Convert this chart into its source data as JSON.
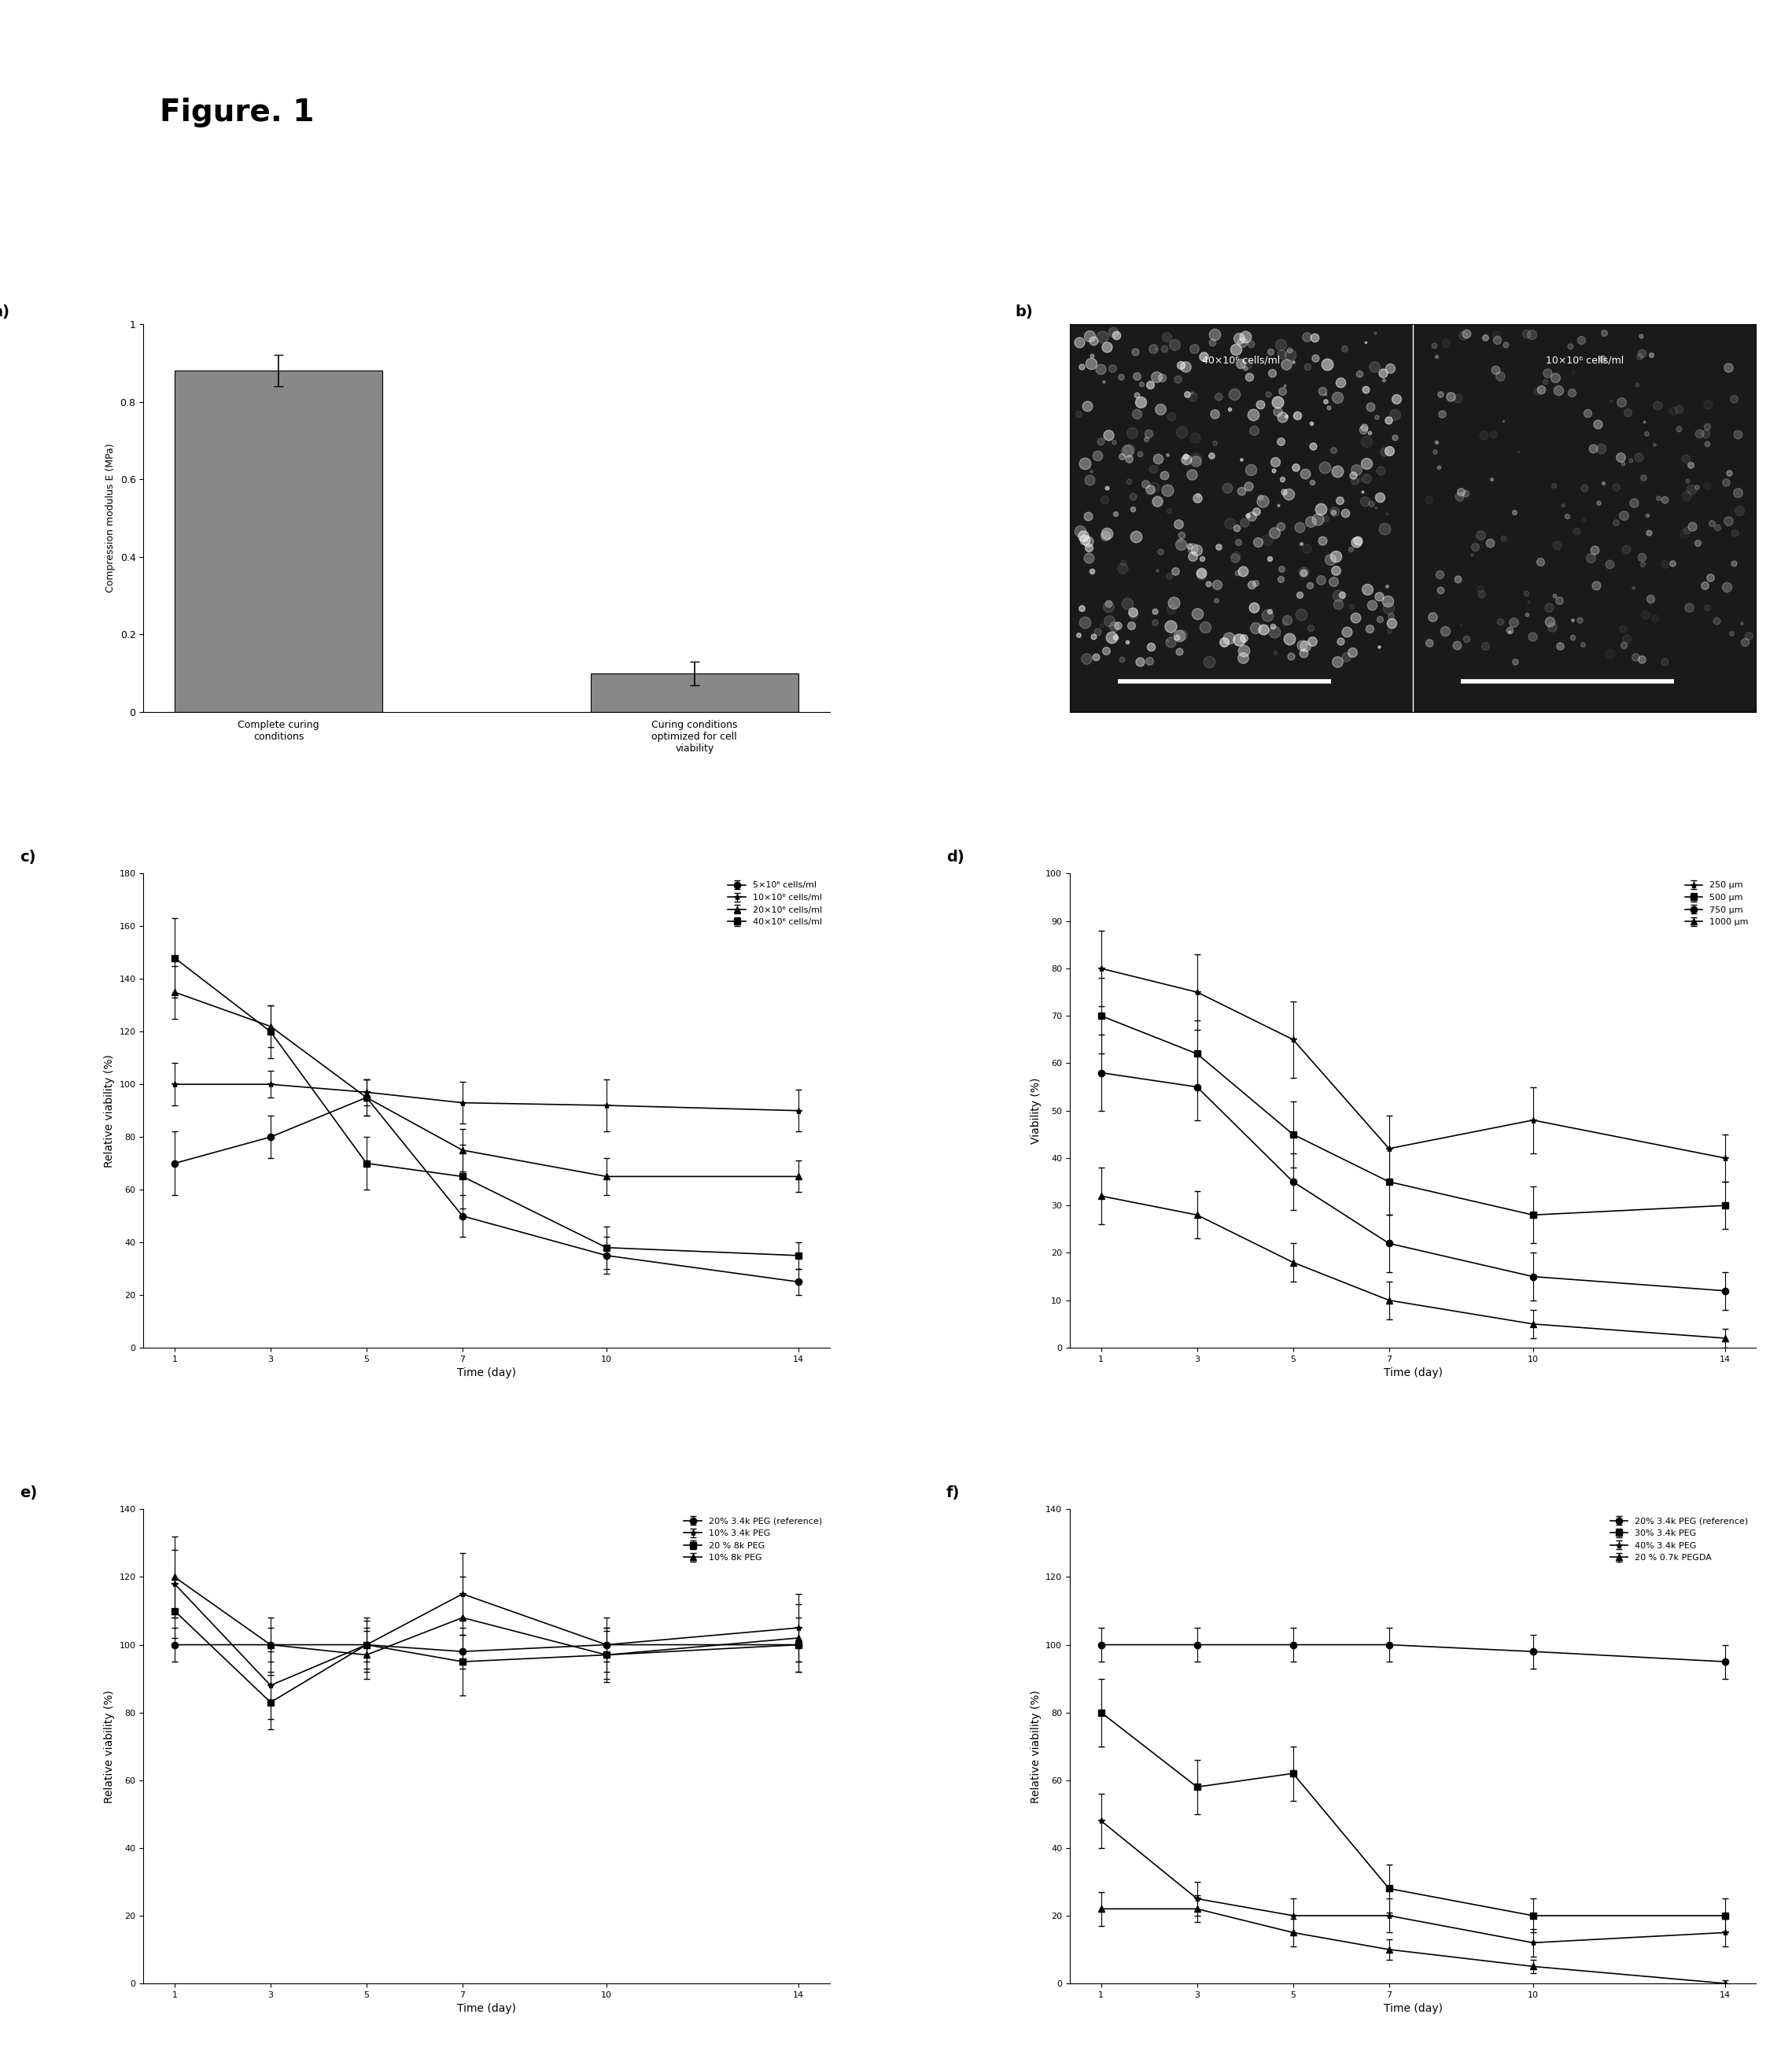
{
  "fig_title": "Figure. 1",
  "panel_a": {
    "bar_values": [
      0.88,
      0.1
    ],
    "bar_errors": [
      0.04,
      0.03
    ],
    "bar_labels": [
      "Complete curing\nconditions",
      "Curing conditions\noptimized for cell\nviability"
    ],
    "bar_color": "#888888",
    "ylabel": "Compression modulus E (MPa)",
    "ylim": [
      0,
      1.0
    ],
    "yticks": [
      0,
      0.2,
      0.4,
      0.6,
      0.8,
      1
    ]
  },
  "panel_c": {
    "time": [
      1,
      3,
      5,
      7,
      10,
      14
    ],
    "series": [
      {
        "label": "5×10⁶ cells/ml",
        "values": [
          70,
          80,
          95,
          50,
          35,
          25
        ],
        "errors": [
          12,
          8,
          7,
          8,
          7,
          5
        ],
        "marker": "o",
        "color": "#000000"
      },
      {
        "label": "10×10⁶ cells/ml",
        "values": [
          100,
          100,
          97,
          93,
          92,
          90
        ],
        "errors": [
          8,
          5,
          5,
          8,
          10,
          8
        ],
        "marker": "*",
        "color": "#000000"
      },
      {
        "label": "20×10⁶ cells/ml",
        "values": [
          135,
          122,
          95,
          75,
          65,
          65
        ],
        "errors": [
          10,
          8,
          7,
          8,
          7,
          6
        ],
        "marker": "^",
        "color": "#000000"
      },
      {
        "label": "40×10⁶ cells/ml",
        "values": [
          148,
          120,
          70,
          65,
          38,
          35
        ],
        "errors": [
          15,
          10,
          10,
          12,
          8,
          5
        ],
        "marker": "s",
        "color": "#000000"
      }
    ],
    "xlabel": "Time (day)",
    "ylabel": "Relative viability (%)",
    "ylim": [
      0,
      180
    ],
    "yticks": [
      0,
      20,
      40,
      60,
      80,
      100,
      120,
      140,
      160,
      180
    ]
  },
  "panel_d": {
    "time": [
      1,
      3,
      5,
      7,
      10,
      14
    ],
    "series": [
      {
        "label": "250 μm",
        "values": [
          80,
          75,
          65,
          42,
          48,
          40
        ],
        "errors": [
          8,
          8,
          8,
          7,
          7,
          5
        ],
        "marker": "*",
        "color": "#000000"
      },
      {
        "label": "500 μm",
        "values": [
          70,
          62,
          45,
          35,
          28,
          30
        ],
        "errors": [
          8,
          7,
          7,
          7,
          6,
          5
        ],
        "marker": "s",
        "color": "#000000"
      },
      {
        "label": "750 μm",
        "values": [
          58,
          55,
          35,
          22,
          15,
          12
        ],
        "errors": [
          8,
          7,
          6,
          6,
          5,
          4
        ],
        "marker": "o",
        "color": "#000000"
      },
      {
        "label": "1000 μm",
        "values": [
          32,
          28,
          18,
          10,
          5,
          2
        ],
        "errors": [
          6,
          5,
          4,
          4,
          3,
          2
        ],
        "marker": "^",
        "color": "#000000"
      }
    ],
    "xlabel": "Time (day)",
    "ylabel": "Viability (%)",
    "ylim": [
      0,
      100
    ],
    "yticks": [
      0,
      10,
      20,
      30,
      40,
      50,
      60,
      70,
      80,
      90,
      100
    ]
  },
  "panel_e": {
    "time": [
      1,
      3,
      5,
      7,
      10,
      14
    ],
    "series": [
      {
        "label": "20% 3.4k PEG (reference)",
        "values": [
          100,
          100,
          100,
          98,
          100,
          100
        ],
        "errors": [
          5,
          5,
          5,
          5,
          5,
          5
        ],
        "marker": "o",
        "color": "#000000"
      },
      {
        "label": "10% 3.4k PEG",
        "values": [
          118,
          88,
          100,
          115,
          100,
          105
        ],
        "errors": [
          10,
          10,
          8,
          12,
          8,
          10
        ],
        "marker": "*",
        "color": "#000000"
      },
      {
        "label": "20 % 8k PEG",
        "values": [
          110,
          83,
          100,
          95,
          97,
          100
        ],
        "errors": [
          8,
          8,
          7,
          10,
          7,
          8
        ],
        "marker": "s",
        "color": "#000000"
      },
      {
        "label": "10% 8k PEG",
        "values": [
          120,
          100,
          97,
          108,
          97,
          102
        ],
        "errors": [
          12,
          8,
          7,
          12,
          8,
          10
        ],
        "marker": "^",
        "color": "#000000"
      }
    ],
    "xlabel": "Time (day)",
    "ylabel": "Relative viability (%)",
    "ylim": [
      0,
      140
    ],
    "yticks": [
      0,
      20,
      40,
      60,
      80,
      100,
      120,
      140
    ]
  },
  "panel_f": {
    "time": [
      1,
      3,
      5,
      7,
      10,
      14
    ],
    "series": [
      {
        "label": "20% 3.4k PEG (reference)",
        "values": [
          100,
          100,
          100,
          100,
          98,
          95
        ],
        "errors": [
          5,
          5,
          5,
          5,
          5,
          5
        ],
        "marker": "o",
        "color": "#000000"
      },
      {
        "label": "30% 3.4k PEG",
        "values": [
          80,
          58,
          62,
          28,
          20,
          20
        ],
        "errors": [
          10,
          8,
          8,
          7,
          5,
          5
        ],
        "marker": "s",
        "color": "#000000"
      },
      {
        "label": "40% 3.4k PEG",
        "values": [
          48,
          25,
          20,
          20,
          12,
          15
        ],
        "errors": [
          8,
          5,
          5,
          5,
          4,
          4
        ],
        "marker": "*",
        "color": "#000000"
      },
      {
        "label": "20 % 0.7k PEGDA",
        "values": [
          22,
          22,
          15,
          10,
          5,
          0
        ],
        "errors": [
          5,
          4,
          4,
          3,
          2,
          1
        ],
        "marker": "^",
        "color": "#000000"
      }
    ],
    "xlabel": "Time (day)",
    "ylabel": "Relative viability (%)",
    "ylim": [
      0,
      140
    ],
    "yticks": [
      0,
      20,
      40,
      60,
      80,
      100,
      120,
      140
    ]
  },
  "panel_b": {
    "left_label": "40×10⁶ cells/ml",
    "right_label": "10×10⁶ cells/ml",
    "bg_color": "#1a1a1a",
    "label_color": "white",
    "scalebar_color": "white"
  }
}
